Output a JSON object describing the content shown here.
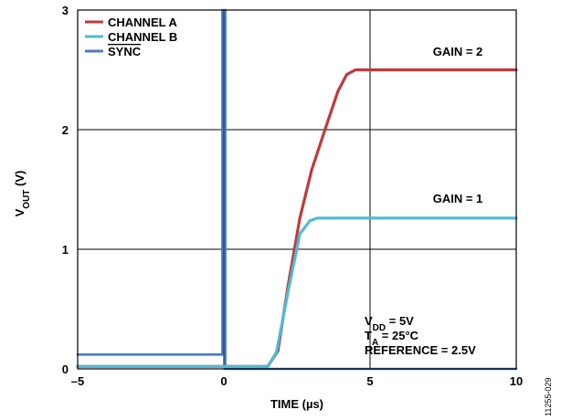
{
  "chart_data": {
    "type": "line",
    "xlabel": "TIME (µs)",
    "ylabel_main": "V",
    "ylabel_sub": "OUT",
    "ylabel_unit": " (V)",
    "xlim": [
      -5,
      10
    ],
    "ylim": [
      0,
      3
    ],
    "grid": true,
    "x_ticks": [
      -5,
      0,
      5,
      10
    ],
    "x_tick_labels": [
      "–5",
      "0",
      "5",
      "10"
    ],
    "y_ticks": [
      0,
      1,
      2,
      3
    ],
    "y_tick_labels": [
      "0",
      "1",
      "2",
      "3"
    ],
    "legend_position": "top-left",
    "series": [
      {
        "name": "CHANNEL A",
        "color": "#c0393b",
        "x": [
          -5,
          1.5,
          1.85,
          2.2,
          2.6,
          3.0,
          3.5,
          3.9,
          4.2,
          4.5,
          5.0,
          6.0,
          7.0,
          8.0,
          9.0,
          10.0
        ],
        "y": [
          0.02,
          0.02,
          0.15,
          0.7,
          1.26,
          1.66,
          2.03,
          2.32,
          2.46,
          2.5,
          2.5,
          2.5,
          2.5,
          2.5,
          2.5,
          2.5
        ]
      },
      {
        "name": "CHANNEL B",
        "color": "#4dbcd4",
        "x": [
          -5,
          1.5,
          1.8,
          2.2,
          2.6,
          2.95,
          3.2,
          3.5,
          4.0,
          5.0,
          6.0,
          7.0,
          8.0,
          9.0,
          10.0
        ],
        "y": [
          0.02,
          0.02,
          0.14,
          0.65,
          1.13,
          1.24,
          1.26,
          1.26,
          1.26,
          1.26,
          1.26,
          1.26,
          1.26,
          1.26,
          1.26
        ]
      },
      {
        "name": "SYNC",
        "name_overline": true,
        "color": "#4a7cc2",
        "x": [
          -5,
          -0.05,
          -0.05,
          -0.05,
          0.05,
          0.05,
          10
        ],
        "y": [
          0.12,
          0.12,
          3.0,
          3.0,
          3.0,
          0.0,
          0.0
        ]
      }
    ],
    "annotations": [
      {
        "text": "GAIN = 2",
        "x": 8.0,
        "y": 2.62
      },
      {
        "text": "GAIN = 1",
        "x": 8.0,
        "y": 1.39
      }
    ],
    "conditions": [
      {
        "main": "V",
        "sub": "DD",
        "rest": " = 5V"
      },
      {
        "main": "T",
        "sub": "A",
        "rest": " = 25°C"
      },
      {
        "main": "REFERENCE = 2.5V",
        "sub": "",
        "rest": ""
      }
    ],
    "figure_id": "11255-029"
  }
}
